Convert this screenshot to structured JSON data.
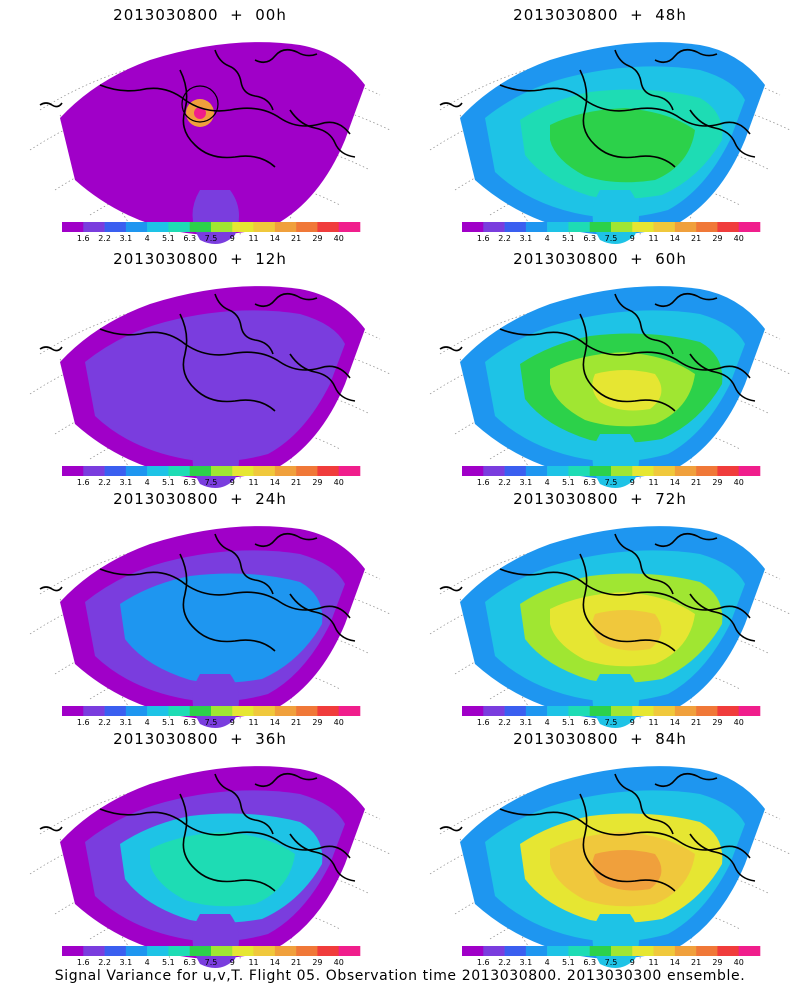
{
  "figure": {
    "caption": "Signal Variance for u,v,T. Flight 05. Observation time 2013030800. 2013030300 ensemble."
  },
  "colorbar": {
    "labels": [
      "1.6",
      "2.2",
      "3.1",
      "4",
      "5.1",
      "6.3",
      "7.5",
      "9",
      "11",
      "14",
      "21",
      "29",
      "40"
    ],
    "colors": [
      "#a000c8",
      "#7a3dde",
      "#3a5ff0",
      "#1e96f0",
      "#1ec3e6",
      "#1edcb4",
      "#2cd14a",
      "#a0e632",
      "#e6e632",
      "#f0c83c",
      "#f0a03c",
      "#f07838",
      "#f03c3c",
      "#f01e8c"
    ]
  },
  "panels": [
    {
      "title": "2013030800  +  00h",
      "level": 0
    },
    {
      "title": "2013030800  +  48h",
      "level": 4
    },
    {
      "title": "2013030800  +  12h",
      "level": 1
    },
    {
      "title": "2013030800  +  60h",
      "level": 5
    },
    {
      "title": "2013030800  +  24h",
      "level": 2
    },
    {
      "title": "2013030800  +  72h",
      "level": 6
    },
    {
      "title": "2013030800  +  36h",
      "level": 3
    },
    {
      "title": "2013030800  +  84h",
      "level": 7
    }
  ]
}
